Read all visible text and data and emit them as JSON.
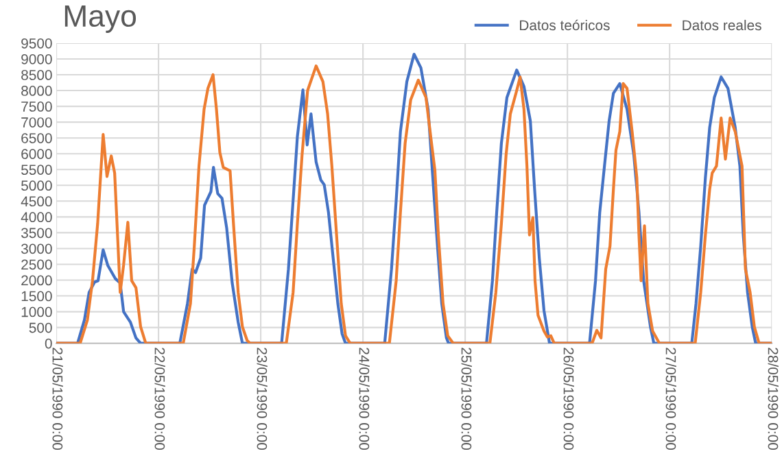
{
  "chart_data": {
    "type": "line",
    "title": "Mayo",
    "xlim": [
      "1990-05-21T00:00",
      "1990-05-28T00:00"
    ],
    "xticks": [
      {
        "value": "1990-05-21T00:00",
        "label": "21/05/1990 0:00"
      },
      {
        "value": "1990-05-22T00:00",
        "label": "22/05/1990 0:00"
      },
      {
        "value": "1990-05-23T00:00",
        "label": "23/05/1990 0:00"
      },
      {
        "value": "1990-05-24T00:00",
        "label": "24/05/1990 0:00"
      },
      {
        "value": "1990-05-25T00:00",
        "label": "25/05/1990 0:00"
      },
      {
        "value": "1990-05-26T00:00",
        "label": "26/05/1990 0:00"
      },
      {
        "value": "1990-05-27T00:00",
        "label": "27/05/1990 0:00"
      },
      {
        "value": "1990-05-28T00:00",
        "label": "28/05/1990 0:00"
      }
    ],
    "ylim": [
      0,
      9500
    ],
    "yticks": [
      0,
      500,
      1000,
      1500,
      2000,
      2500,
      3000,
      3500,
      4000,
      4500,
      5000,
      5500,
      6000,
      6500,
      7000,
      7500,
      8000,
      8500,
      9000,
      9500
    ],
    "grid": true,
    "legend": "top right",
    "marker": "none",
    "line_style": "solid",
    "series": [
      {
        "name": "Datos teóricos",
        "color": "#4472c4",
        "x": [
          "1990-05-21T00:00",
          "1990-05-21T05:00",
          "1990-05-21T06:36",
          "1990-05-21T07:42",
          "1990-05-21T09:00",
          "1990-05-21T09:48",
          "1990-05-21T11:00",
          "1990-05-21T12:06",
          "1990-05-21T13:54",
          "1990-05-21T15:00",
          "1990-05-21T15:48",
          "1990-05-21T17:24",
          "1990-05-21T18:42",
          "1990-05-21T19:48",
          "1990-05-22T05:00",
          "1990-05-22T06:48",
          "1990-05-22T07:54",
          "1990-05-22T08:42",
          "1990-05-22T09:54",
          "1990-05-22T10:48",
          "1990-05-22T12:18",
          "1990-05-22T12:54",
          "1990-05-22T13:54",
          "1990-05-22T14:54",
          "1990-05-22T16:00",
          "1990-05-22T17:18",
          "1990-05-22T18:42",
          "1990-05-22T19:42",
          "1990-05-23T04:54",
          "1990-05-23T06:30",
          "1990-05-23T07:36",
          "1990-05-23T08:36",
          "1990-05-23T09:54",
          "1990-05-23T10:54",
          "1990-05-23T11:48",
          "1990-05-23T13:00",
          "1990-05-23T14:06",
          "1990-05-23T14:54",
          "1990-05-23T15:54",
          "1990-05-23T17:00",
          "1990-05-23T18:06",
          "1990-05-23T19:06",
          "1990-05-23T19:54",
          "1990-05-24T05:06",
          "1990-05-24T06:42",
          "1990-05-24T07:48",
          "1990-05-24T08:48",
          "1990-05-24T10:18",
          "1990-05-24T12:00",
          "1990-05-24T13:36",
          "1990-05-24T15:18",
          "1990-05-24T16:24",
          "1990-05-24T17:30",
          "1990-05-24T18:30",
          "1990-05-24T19:36",
          "1990-05-24T20:06",
          "1990-05-25T05:00",
          "1990-05-25T06:24",
          "1990-05-25T07:24",
          "1990-05-25T08:30",
          "1990-05-25T09:48",
          "1990-05-25T12:06",
          "1990-05-25T13:48",
          "1990-05-25T15:18",
          "1990-05-25T16:18",
          "1990-05-25T17:24",
          "1990-05-25T18:30",
          "1990-05-25T19:48",
          "1990-05-26T05:12",
          "1990-05-26T06:36",
          "1990-05-26T07:36",
          "1990-05-26T08:42",
          "1990-05-26T09:48",
          "1990-05-26T10:48",
          "1990-05-26T12:18",
          "1990-05-26T14:00",
          "1990-05-26T15:36",
          "1990-05-26T16:48",
          "1990-05-26T17:54",
          "1990-05-26T19:30",
          "1990-05-26T20:18",
          "1990-05-27T05:12",
          "1990-05-27T06:12",
          "1990-05-27T07:18",
          "1990-05-27T08:24",
          "1990-05-27T09:24",
          "1990-05-27T10:30",
          "1990-05-27T12:06",
          "1990-05-27T13:42",
          "1990-05-27T15:24",
          "1990-05-27T16:30",
          "1990-05-27T17:18",
          "1990-05-27T18:18",
          "1990-05-27T19:24",
          "1990-05-27T20:12",
          "1990-05-28T00:00"
        ],
        "values": [
          0,
          0,
          740,
          1610,
          1940,
          1980,
          2960,
          2460,
          2040,
          1910,
          1000,
          670,
          170,
          0,
          0,
          1260,
          2350,
          2240,
          2700,
          4370,
          4800,
          5570,
          4740,
          4590,
          3650,
          1910,
          670,
          0,
          0,
          2350,
          4520,
          6540,
          8020,
          6280,
          7260,
          5740,
          5170,
          5020,
          4150,
          2700,
          1260,
          300,
          0,
          0,
          2350,
          4520,
          6700,
          8280,
          9150,
          8720,
          7410,
          5240,
          3070,
          1260,
          170,
          0,
          0,
          1980,
          4150,
          6330,
          7780,
          8650,
          8130,
          7040,
          4870,
          2700,
          1040,
          0,
          0,
          1980,
          4150,
          5610,
          7040,
          7910,
          8220,
          7410,
          5960,
          4150,
          1980,
          520,
          0,
          0,
          1260,
          3070,
          5240,
          6830,
          7780,
          8430,
          8070,
          6830,
          5610,
          3430,
          1610,
          520,
          0,
          0
        ]
      },
      {
        "name": "Datos reales",
        "color": "#ed7d31",
        "x": [
          "1990-05-21T00:00",
          "1990-05-21T05:36",
          "1990-05-21T07:18",
          "1990-05-21T08:30",
          "1990-05-21T09:42",
          "1990-05-21T10:30",
          "1990-05-21T11:00",
          "1990-05-21T11:54",
          "1990-05-21T12:54",
          "1990-05-21T13:42",
          "1990-05-21T14:30",
          "1990-05-21T15:00",
          "1990-05-21T15:48",
          "1990-05-21T16:48",
          "1990-05-21T17:42",
          "1990-05-21T18:42",
          "1990-05-21T19:48",
          "1990-05-21T21:00",
          "1990-05-22T05:48",
          "1990-05-22T07:30",
          "1990-05-22T08:24",
          "1990-05-22T09:30",
          "1990-05-22T10:42",
          "1990-05-22T11:36",
          "1990-05-22T12:48",
          "1990-05-22T13:36",
          "1990-05-22T14:24",
          "1990-05-22T15:12",
          "1990-05-22T16:48",
          "1990-05-22T17:36",
          "1990-05-22T18:42",
          "1990-05-22T19:42",
          "1990-05-22T20:48",
          "1990-05-22T21:30",
          "1990-05-23T06:00",
          "1990-05-23T07:36",
          "1990-05-23T08:36",
          "1990-05-23T09:42",
          "1990-05-23T11:00",
          "1990-05-23T13:00",
          "1990-05-23T14:36",
          "1990-05-23T15:42",
          "1990-05-23T16:42",
          "1990-05-23T17:48",
          "1990-05-23T18:54",
          "1990-05-23T19:54",
          "1990-05-23T21:00",
          "1990-05-24T06:12",
          "1990-05-24T07:48",
          "1990-05-24T08:48",
          "1990-05-24T09:54",
          "1990-05-24T11:12",
          "1990-05-24T13:00",
          "1990-05-24T14:48",
          "1990-05-24T16:06",
          "1990-05-24T16:54",
          "1990-05-24T17:42",
          "1990-05-24T18:48",
          "1990-05-24T19:54",
          "1990-05-24T21:12",
          "1990-05-25T05:48",
          "1990-05-25T07:12",
          "1990-05-25T08:30",
          "1990-05-25T09:36",
          "1990-05-25T10:36",
          "1990-05-25T12:06",
          "1990-05-25T12:54",
          "1990-05-25T13:48",
          "1990-05-25T14:30",
          "1990-05-25T15:06",
          "1990-05-25T15:54",
          "1990-05-25T16:24",
          "1990-05-25T17:06",
          "1990-05-25T18:30",
          "1990-05-25T19:18",
          "1990-05-25T20:06",
          "1990-05-25T20:54",
          "1990-05-26T05:48",
          "1990-05-26T06:54",
          "1990-05-26T07:54",
          "1990-05-26T09:00",
          "1990-05-26T10:00",
          "1990-05-26T10:48",
          "1990-05-26T11:24",
          "1990-05-26T12:18",
          "1990-05-26T13:06",
          "1990-05-26T14:00",
          "1990-05-26T15:12",
          "1990-05-26T16:18",
          "1990-05-26T16:48",
          "1990-05-26T17:18",
          "1990-05-26T18:06",
          "1990-05-26T18:54",
          "1990-05-26T20:00",
          "1990-05-26T21:36",
          "1990-05-27T06:00",
          "1990-05-27T07:18",
          "1990-05-27T08:24",
          "1990-05-27T09:24",
          "1990-05-27T10:00",
          "1990-05-27T11:00",
          "1990-05-27T12:06",
          "1990-05-27T13:06",
          "1990-05-27T14:12",
          "1990-05-27T15:24",
          "1990-05-27T17:00",
          "1990-05-27T17:48",
          "1990-05-27T18:54",
          "1990-05-27T19:54",
          "1990-05-27T21:00",
          "1990-05-28T00:00"
        ],
        "values": [
          0,
          0,
          740,
          1980,
          3780,
          5520,
          6610,
          5280,
          5930,
          5390,
          3070,
          1610,
          2480,
          3830,
          1980,
          1760,
          520,
          0,
          0,
          1260,
          3070,
          5610,
          7410,
          8070,
          8500,
          7410,
          6040,
          5570,
          5460,
          3780,
          1610,
          520,
          90,
          0,
          0,
          1610,
          3780,
          5960,
          8000,
          8780,
          8280,
          7260,
          5610,
          3430,
          1260,
          240,
          0,
          0,
          1980,
          4150,
          6330,
          7700,
          8330,
          7780,
          6330,
          5460,
          3430,
          1260,
          240,
          0,
          0,
          1610,
          3780,
          5960,
          7260,
          8000,
          8430,
          7410,
          5610,
          3430,
          3980,
          1980,
          890,
          390,
          200,
          240,
          0,
          0,
          410,
          170,
          2350,
          3070,
          4870,
          6110,
          6700,
          8220,
          8070,
          6700,
          5240,
          3430,
          1980,
          3720,
          1260,
          390,
          0,
          0,
          1610,
          3430,
          4870,
          5390,
          5610,
          7130,
          5830,
          7130,
          6700,
          5610,
          2350,
          1610,
          520,
          0,
          0
        ]
      }
    ]
  }
}
